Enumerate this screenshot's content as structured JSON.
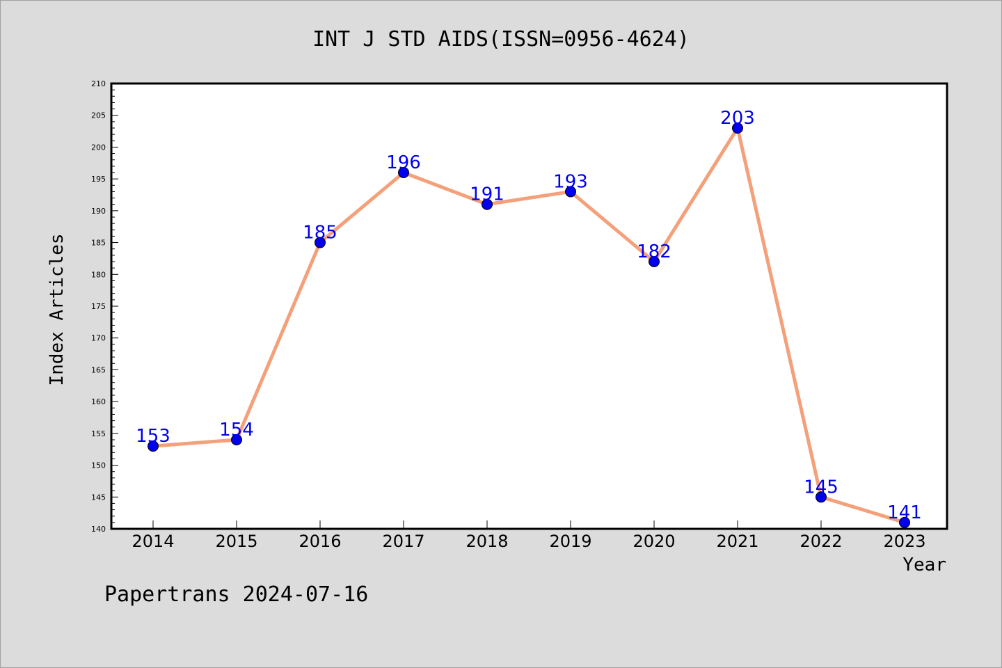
{
  "chart_data": {
    "type": "line",
    "title": "INT J STD AIDS(ISSN=0956-4624)",
    "xlabel": "Year",
    "ylabel": "Index Articles",
    "categories": [
      "2014",
      "2015",
      "2016",
      "2017",
      "2018",
      "2019",
      "2020",
      "2021",
      "2022",
      "2023"
    ],
    "values": [
      153,
      154,
      185,
      196,
      191,
      193,
      182,
      203,
      145,
      141
    ],
    "ylim": [
      140,
      210
    ],
    "y_major_ticks": [
      140,
      145,
      150,
      155,
      160,
      165,
      170,
      175,
      180,
      185,
      190,
      195,
      200,
      205,
      210
    ],
    "grid": false,
    "line_color": "#f4a07a",
    "marker_color": "#0000ee",
    "label_color": "#0000ee"
  },
  "footer": {
    "credit": "Papertrans 2024-07-16"
  }
}
